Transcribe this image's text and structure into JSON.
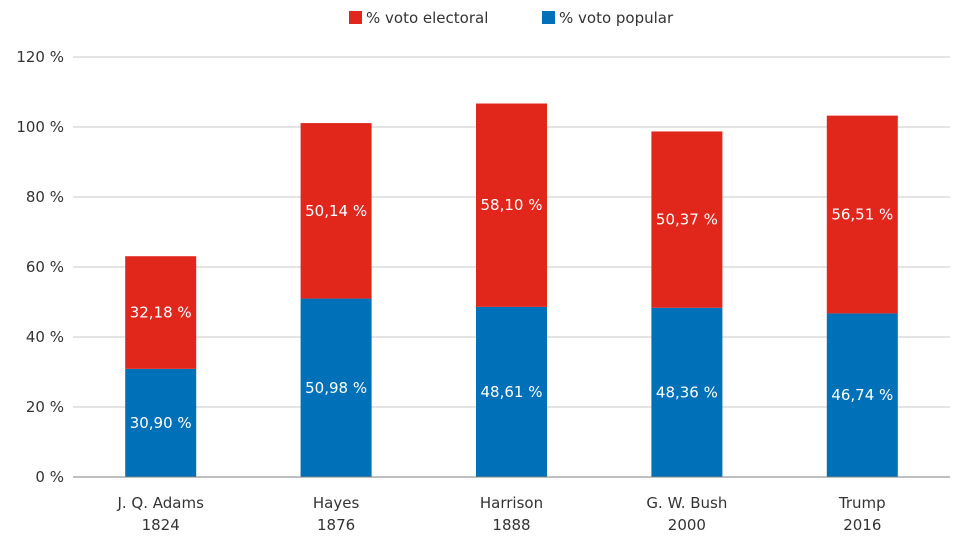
{
  "chart_data": {
    "type": "bar",
    "stacked": true,
    "categories": [
      [
        "J. Q. Adams",
        "1824"
      ],
      [
        "Hayes",
        "1876"
      ],
      [
        "Harrison",
        "1888"
      ],
      [
        "G. W. Bush",
        "2000"
      ],
      [
        "Trump",
        "2016"
      ]
    ],
    "series": [
      {
        "name": "% voto popular",
        "color": "#0070b8",
        "values": [
          30.9,
          50.98,
          48.61,
          48.36,
          46.74
        ],
        "labels": [
          "30,90 %",
          "50,98 %",
          "48,61 %",
          "48,36 %",
          "46,74 %"
        ]
      },
      {
        "name": "% voto electoral",
        "color": "#e1261c",
        "values": [
          32.18,
          50.14,
          58.1,
          50.37,
          56.51
        ],
        "labels": [
          "32,18 %",
          "50,14 %",
          "58,10 %",
          "50,37 %",
          "56,51 %"
        ]
      }
    ],
    "legend": {
      "placement": "top-center",
      "items": [
        {
          "name": "% voto electoral",
          "color": "#e1261c"
        },
        {
          "name": "% voto popular",
          "color": "#0070b8"
        }
      ]
    },
    "ylim": [
      0,
      120
    ],
    "yticks": [
      0,
      20,
      40,
      60,
      80,
      100,
      120
    ],
    "ytick_labels": [
      "0 %",
      "20 %",
      "40 %",
      "60 %",
      "80 %",
      "100 %",
      "120 %"
    ],
    "grid": true,
    "gridline_color": "#c8c8c8",
    "axis_color": "#7f7f7f"
  }
}
